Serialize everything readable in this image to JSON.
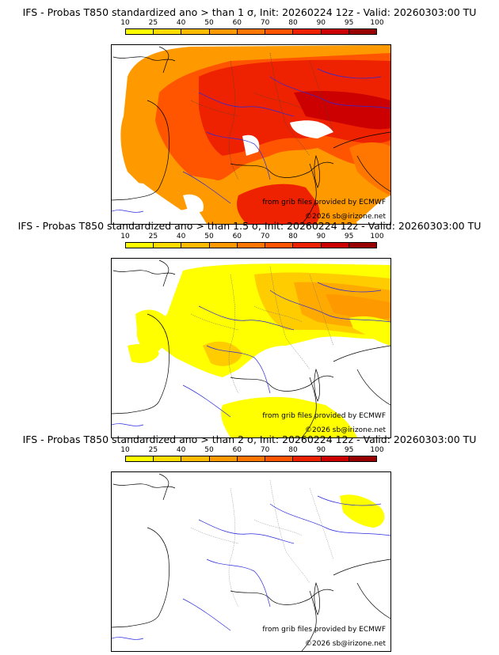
{
  "colorbar": {
    "labels": [
      "10",
      "25",
      "40",
      "50",
      "60",
      "70",
      "80",
      "90",
      "95",
      "100"
    ],
    "colors": [
      "#ffff00",
      "#ffdd00",
      "#ffbb00",
      "#ff9900",
      "#ff7700",
      "#ff5500",
      "#ee2200",
      "#cc0000",
      "#990000"
    ]
  },
  "panels": [
    {
      "title": "IFS - Probas T850  standardized ano > than 1 σ, Init: 20260224 12z - Valid: 20260303:00 TU",
      "credit_grib": "from grib files provided by ECMWF",
      "credit_copyright": "©2026 sb@irizone.net"
    },
    {
      "title": "IFS - Probas T850  standardized ano > than 1.5 σ, Init: 20260224 12z - Valid: 20260303:00 TU",
      "credit_grib": "from grib files provided by ECMWF",
      "credit_copyright": "©2026 sb@irizone.net"
    },
    {
      "title": "IFS - Probas T850  standardized ano > than 2 σ, Init: 20260224 12z - Valid: 20260303:00 TU",
      "credit_grib": "from grib files provided by ECMWF",
      "credit_copyright": "©2026 sb@irizone.net"
    }
  ]
}
